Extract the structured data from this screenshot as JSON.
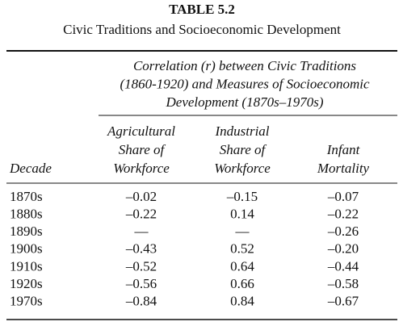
{
  "title": "TABLE 5.2",
  "subtitle": "Civic Traditions and Socioeconomic Development",
  "spanner": [
    "Correlation (r) between Civic Traditions",
    "(1860-1920) and Measures of Socioeconomic",
    "Development (1870s–1970s)"
  ],
  "row_header": "Decade",
  "columns": [
    [
      "Agricultural",
      "Share of",
      "Workforce"
    ],
    [
      "Industrial",
      "Share of",
      "Workforce"
    ],
    [
      "Infant",
      "Mortality"
    ]
  ],
  "rows": [
    [
      "1870s",
      "–0.02",
      "–0.15",
      "–0.07"
    ],
    [
      "1880s",
      "–0.22",
      "0.14",
      "–0.22"
    ],
    [
      "1890s",
      "—",
      "—",
      "–0.26"
    ],
    [
      "1900s",
      "–0.43",
      "0.52",
      "–0.20"
    ],
    [
      "1910s",
      "–0.52",
      "0.64",
      "–0.44"
    ],
    [
      "1920s",
      "–0.56",
      "0.66",
      "–0.58"
    ],
    [
      "1970s",
      "–0.84",
      "0.84",
      "–0.67"
    ]
  ]
}
